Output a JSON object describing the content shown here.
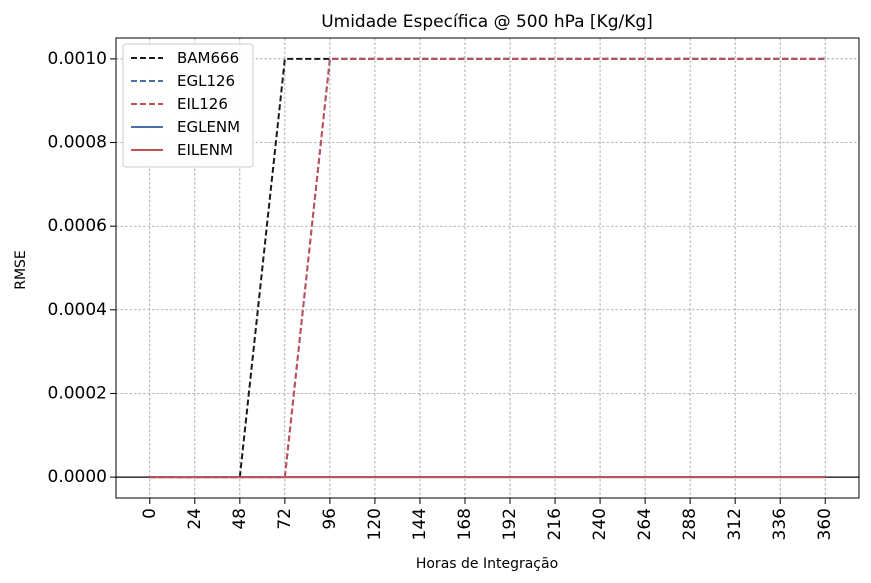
{
  "chart_data": {
    "type": "line",
    "title": "Umidade Específica @ 500 hPa [Kg/Kg]",
    "xlabel": "Horas de Integração",
    "ylabel": "RMSE",
    "xlim": [
      -18,
      378
    ],
    "ylim": [
      -5e-05,
      0.00105
    ],
    "xticks": [
      0,
      24,
      48,
      72,
      96,
      120,
      144,
      168,
      192,
      216,
      240,
      264,
      288,
      312,
      336,
      360
    ],
    "yticks": [
      0.0,
      0.0002,
      0.0004,
      0.0006,
      0.0008,
      0.001
    ],
    "ytick_labels": [
      "0.0000",
      "0.0002",
      "0.0004",
      "0.0006",
      "0.0008",
      "0.0010"
    ],
    "grid": true,
    "legend_position": "top-left",
    "series": [
      {
        "name": "BAM666",
        "color": "#1a1a1a",
        "dashed": true,
        "x": [
          0,
          24,
          48,
          72,
          96,
          120,
          144,
          168,
          192,
          216,
          240,
          264,
          288,
          312,
          336,
          360
        ],
        "y": [
          0,
          0,
          0,
          0.001,
          0.001,
          0.001,
          0.001,
          0.001,
          0.001,
          0.001,
          0.001,
          0.001,
          0.001,
          0.001,
          0.001,
          0.001
        ]
      },
      {
        "name": "EGL126",
        "color": "#4a6fa5",
        "dashed": true,
        "x": [
          0,
          24,
          48,
          72,
          96,
          120,
          144,
          168,
          192,
          216,
          240,
          264,
          288,
          312,
          336,
          360
        ],
        "y": [
          0,
          0,
          0,
          0,
          0.001,
          0.001,
          0.001,
          0.001,
          0.001,
          0.001,
          0.001,
          0.001,
          0.001,
          0.001,
          0.001,
          0.001
        ]
      },
      {
        "name": "EIL126",
        "color": "#c0505a",
        "dashed": true,
        "x": [
          0,
          24,
          48,
          72,
          96,
          120,
          144,
          168,
          192,
          216,
          240,
          264,
          288,
          312,
          336,
          360
        ],
        "y": [
          0,
          0,
          0,
          0,
          0.001,
          0.001,
          0.001,
          0.001,
          0.001,
          0.001,
          0.001,
          0.001,
          0.001,
          0.001,
          0.001,
          0.001
        ]
      },
      {
        "name": "EGLENM",
        "color": "#4a6fa5",
        "dashed": false,
        "x": [
          0,
          24,
          48,
          72,
          96,
          120,
          144,
          168,
          192,
          216,
          240,
          264,
          288,
          312,
          336,
          360
        ],
        "y": [
          0,
          0,
          0,
          0,
          0,
          0,
          0,
          0,
          0,
          0,
          0,
          0,
          0,
          0,
          0,
          0
        ]
      },
      {
        "name": "EILENM",
        "color": "#c0505a",
        "dashed": false,
        "x": [
          0,
          24,
          48,
          72,
          96,
          120,
          144,
          168,
          192,
          216,
          240,
          264,
          288,
          312,
          336,
          360
        ],
        "y": [
          0,
          0,
          0,
          0,
          0,
          0,
          0,
          0,
          0,
          0,
          0,
          0,
          0,
          0,
          0,
          0
        ]
      }
    ]
  }
}
